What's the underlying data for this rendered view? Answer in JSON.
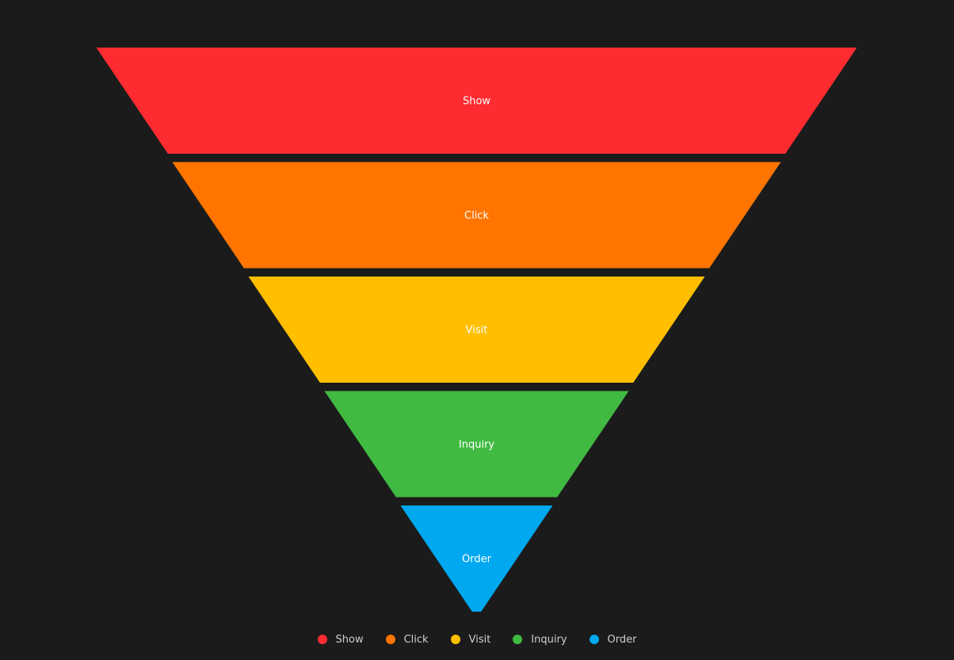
{
  "chart_data": {
    "type": "funnel",
    "title": "",
    "categories": [
      "Show",
      "Click",
      "Visit",
      "Inquiry",
      "Order"
    ],
    "values": [
      100,
      80,
      60,
      40,
      20
    ],
    "colors": [
      "#fe2b31",
      "#ff7500",
      "#ffbf00",
      "#41ba42",
      "#00a8f0"
    ],
    "sort": "descending",
    "legend": {
      "position": "bottom",
      "items": [
        {
          "label": "Show",
          "color": "#fe2b31"
        },
        {
          "label": "Click",
          "color": "#ff7500"
        },
        {
          "label": "Visit",
          "color": "#ffbf00"
        },
        {
          "label": "Inquiry",
          "color": "#41ba42"
        },
        {
          "label": "Order",
          "color": "#00a8f0"
        }
      ]
    }
  },
  "background": "#1b1b1b"
}
